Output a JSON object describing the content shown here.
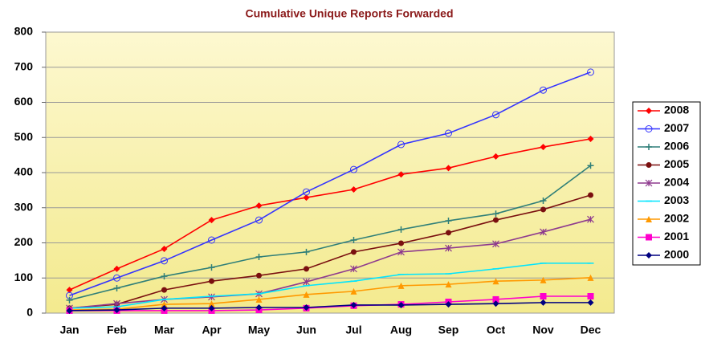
{
  "chart_data": {
    "type": "line",
    "title": "Cumulative Unique Reports Forwarded",
    "categories": [
      "Jan",
      "Feb",
      "Mar",
      "Apr",
      "May",
      "Jun",
      "Jul",
      "Aug",
      "Sep",
      "Oct",
      "Nov",
      "Dec"
    ],
    "ylim": [
      0,
      800
    ],
    "yticks": [
      0,
      100,
      200,
      300,
      400,
      500,
      600,
      700,
      800
    ],
    "grid": true,
    "legend": "right",
    "series": [
      {
        "name": "2008",
        "color": "#ff0000",
        "marker": "diamond",
        "values": [
          66,
          126,
          183,
          265,
          306,
          329,
          352,
          395,
          413,
          446,
          473,
          496
        ]
      },
      {
        "name": "2007",
        "color": "#3333ff",
        "marker": "open-circle",
        "values": [
          50,
          100,
          149,
          208,
          265,
          345,
          409,
          480,
          512,
          565,
          635,
          686
        ]
      },
      {
        "name": "2006",
        "color": "#2f7f78",
        "marker": "plus",
        "values": [
          37,
          71,
          105,
          130,
          160,
          174,
          208,
          238,
          263,
          283,
          320,
          420
        ]
      },
      {
        "name": "2005",
        "color": "#7a0f0f",
        "marker": "circle",
        "values": [
          14,
          25,
          66,
          91,
          107,
          126,
          174,
          199,
          229,
          265,
          295,
          336
        ]
      },
      {
        "name": "2004",
        "color": "#8e3a8e",
        "marker": "star",
        "values": [
          14,
          27,
          39,
          46,
          55,
          89,
          126,
          174,
          185,
          197,
          231,
          267
        ]
      },
      {
        "name": "2003",
        "color": "#00e5ff",
        "marker": "dash",
        "values": [
          14,
          18,
          39,
          48,
          55,
          78,
          91,
          110,
          112,
          126,
          142,
          142
        ]
      },
      {
        "name": "2002",
        "color": "#ff9900",
        "marker": "triangle",
        "values": [
          9,
          11,
          25,
          27,
          39,
          53,
          62,
          78,
          82,
          91,
          94,
          101
        ]
      },
      {
        "name": "2001",
        "color": "#ff00cc",
        "marker": "square",
        "values": [
          7,
          7,
          7,
          7,
          9,
          14,
          21,
          25,
          32,
          39,
          48,
          48
        ]
      },
      {
        "name": "2000",
        "color": "#000080",
        "marker": "diamond",
        "values": [
          7,
          9,
          14,
          14,
          16,
          16,
          23,
          23,
          25,
          27,
          30,
          30
        ]
      }
    ]
  }
}
